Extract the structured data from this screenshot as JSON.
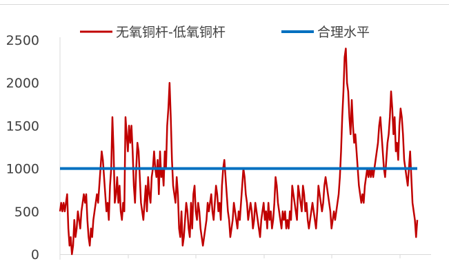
{
  "chart_data": {
    "type": "line",
    "title": "",
    "xlabel": "",
    "ylabel": "",
    "ylim": [
      0,
      2500
    ],
    "yticks": [
      0,
      500,
      1000,
      1500,
      2000,
      2500
    ],
    "grid": false,
    "legend_position": "top",
    "colors": {
      "spread": "#c00000",
      "fair": "#0070c0"
    },
    "series": [
      {
        "name": "无氧铜杆-低氧铜杆",
        "values": [
          500,
          600,
          500,
          600,
          500,
          600,
          700,
          300,
          100,
          200,
          0,
          100,
          400,
          200,
          300,
          500,
          400,
          300,
          500,
          600,
          700,
          600,
          700,
          400,
          200,
          100,
          300,
          200,
          400,
          500,
          600,
          700,
          600,
          800,
          1000,
          1200,
          1100,
          900,
          700,
          500,
          600,
          400,
          800,
          1000,
          1600,
          1200,
          600,
          700,
          900,
          600,
          800,
          500,
          400,
          600,
          500,
          1600,
          1400,
          1200,
          1500,
          1300,
          1500,
          1200,
          800,
          600,
          1000,
          1300,
          1200,
          900,
          600,
          500,
          400,
          600,
          800,
          500,
          900,
          700,
          600,
          900,
          1000,
          1200,
          1000,
          900,
          1100,
          700,
          1200,
          900,
          1000,
          800,
          1200,
          1000,
          1500,
          1700,
          2000,
          1600,
          1100,
          800,
          700,
          600,
          900,
          700,
          300,
          200,
          500,
          100,
          200,
          400,
          600,
          500,
          300,
          200,
          600,
          300,
          700,
          800,
          500,
          400,
          600,
          500,
          300,
          200,
          100,
          200,
          300,
          400,
          600,
          500,
          600,
          700,
          500,
          400,
          600,
          800,
          700,
          500,
          600,
          400,
          800,
          1000,
          1100,
          900,
          700,
          500,
          400,
          200,
          300,
          400,
          600,
          500,
          400,
          300,
          500,
          400,
          600,
          800,
          1000,
          900,
          700,
          600,
          400,
          500,
          600,
          500,
          300,
          400,
          600,
          500,
          400,
          300,
          200,
          400,
          500,
          600,
          400,
          500,
          300,
          600,
          400,
          500,
          300,
          400,
          600,
          900,
          800,
          600,
          500,
          400,
          300,
          500,
          400,
          500,
          300,
          400,
          300,
          500,
          400,
          800,
          700,
          600,
          500,
          400,
          800,
          700,
          600,
          500,
          800,
          700,
          500,
          600,
          400,
          300,
          400,
          500,
          600,
          500,
          400,
          300,
          500,
          800,
          700,
          600,
          500,
          600,
          800,
          900,
          800,
          700,
          600,
          500,
          300,
          400,
          500,
          400,
          500,
          600,
          700,
          900,
          1200,
          1600,
          1900,
          2300,
          2400,
          2000,
          1900,
          1600,
          1400,
          1800,
          1500,
          1300,
          1400,
          1200,
          1000,
          800,
          700,
          600,
          700,
          600,
          800,
          900,
          1000,
          900,
          1000,
          900,
          1000,
          900,
          1000,
          1100,
          1200,
          1300,
          1500,
          1600,
          1400,
          1200,
          1000,
          900,
          1100,
          1300,
          1400,
          1600,
          1900,
          1700,
          1400,
          1600,
          1200,
          1300,
          1100,
          1500,
          1700,
          1600,
          1400,
          1100,
          1000,
          900,
          800,
          1000,
          1200,
          900,
          600,
          500,
          400,
          200,
          400
        ]
      },
      {
        "name": "合理水平",
        "values": [
          1000,
          1000
        ]
      }
    ]
  }
}
